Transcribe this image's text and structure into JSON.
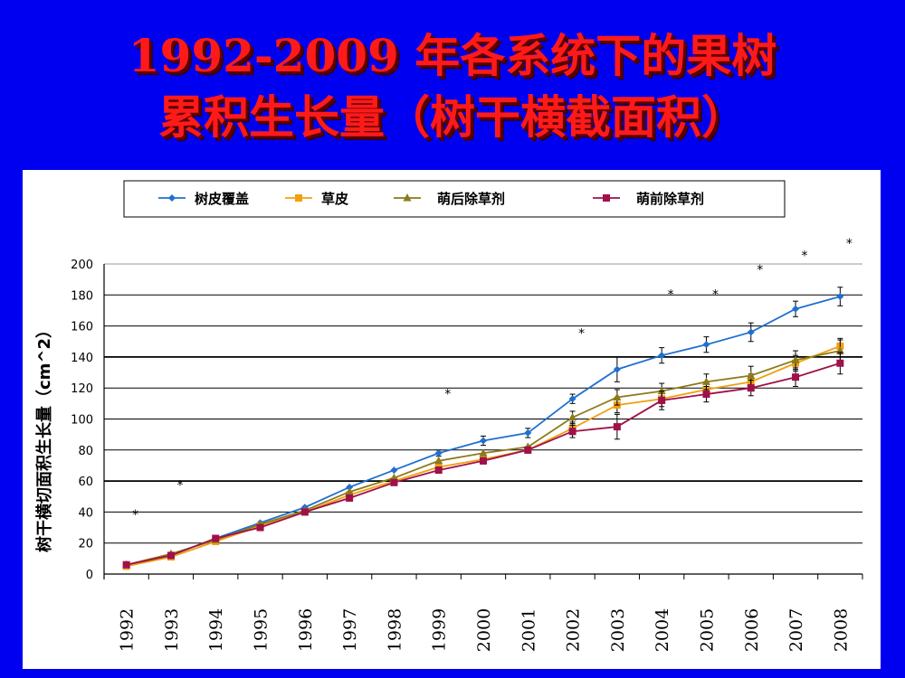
{
  "slide": {
    "title_line1": "1992-2009 年各系统下的果树",
    "title_line2": "累积生长量（树干横截面积）"
  },
  "chart_data": {
    "type": "line",
    "ylabel": "树干横切面积生长量（cm^2）",
    "xlabel": "",
    "ylim": [
      0,
      200
    ],
    "yticks": [
      0,
      20,
      40,
      60,
      80,
      100,
      120,
      140,
      160,
      180,
      200
    ],
    "categories": [
      "1992",
      "1993",
      "1994",
      "1995",
      "1996",
      "1997",
      "1998",
      "1999",
      "2000",
      "2001",
      "2002",
      "2003",
      "2004",
      "2005",
      "2006",
      "2007",
      "2008"
    ],
    "legend_position": "top",
    "grid": true,
    "series": [
      {
        "name": "树皮覆盖",
        "color": "#1f6fd0",
        "marker": "diamond",
        "values": [
          6,
          12,
          23,
          33,
          43,
          56,
          67,
          78,
          86,
          91,
          113,
          132,
          141,
          148,
          156,
          171,
          179
        ],
        "errors": [
          0,
          0,
          0,
          0,
          0,
          0,
          0,
          2,
          3,
          3,
          3,
          8,
          5,
          5,
          6,
          5,
          6
        ]
      },
      {
        "name": "草皮",
        "color": "#f0a010",
        "marker": "square",
        "values": [
          5,
          11,
          21,
          31,
          40,
          51,
          60,
          69,
          74,
          80,
          94,
          109,
          113,
          119,
          124,
          136,
          147
        ],
        "errors": [
          0,
          0,
          0,
          0,
          0,
          0,
          0,
          0,
          0,
          0,
          4,
          5,
          5,
          5,
          5,
          5,
          5
        ]
      },
      {
        "name": "萌后除草剂",
        "color": "#8c7a1a",
        "marker": "triangle",
        "values": [
          6,
          13,
          22,
          32,
          41,
          53,
          62,
          73,
          78,
          82,
          101,
          114,
          118,
          124,
          128,
          138,
          144
        ],
        "errors": [
          0,
          0,
          0,
          0,
          0,
          0,
          0,
          0,
          0,
          0,
          4,
          5,
          5,
          5,
          6,
          6,
          7
        ]
      },
      {
        "name": "萌前除草剂",
        "color": "#a0104a",
        "marker": "square",
        "values": [
          6,
          12,
          23,
          30,
          40,
          49,
          59,
          67,
          73,
          80,
          92,
          95,
          112,
          116,
          120,
          127,
          136
        ],
        "errors": [
          0,
          0,
          0,
          0,
          0,
          0,
          0,
          2,
          2,
          2,
          4,
          8,
          6,
          5,
          5,
          6,
          7
        ]
      }
    ],
    "annotations": [
      "*",
      "*",
      "*",
      "*",
      "*",
      "*",
      "*",
      "*",
      "*",
      "*"
    ]
  }
}
